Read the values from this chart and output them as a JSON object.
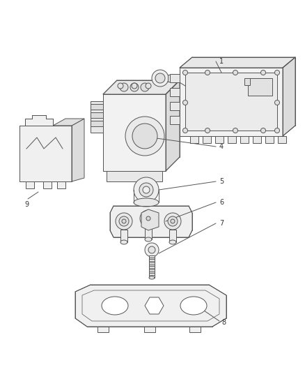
{
  "bg_color": "#ffffff",
  "lc": "#555555",
  "lw": 0.7,
  "label_color": "#333333",
  "label_fs": 7,
  "figsize": [
    4.38,
    5.33
  ],
  "dpi": 100
}
